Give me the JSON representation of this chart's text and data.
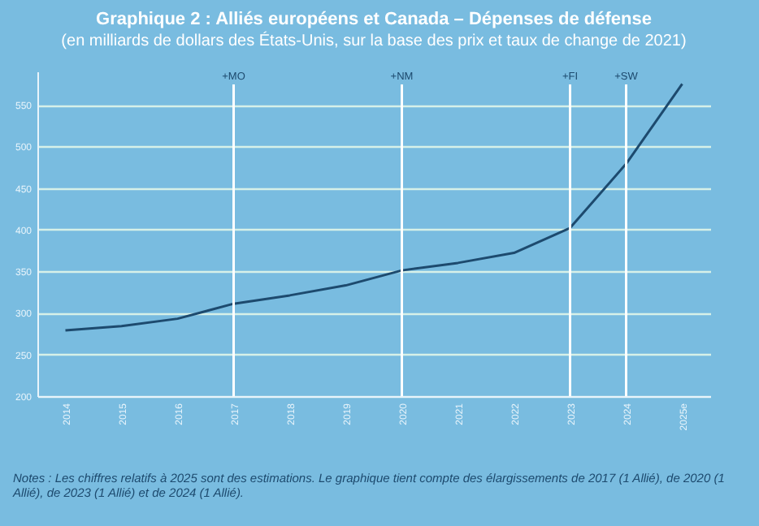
{
  "chart_data": {
    "type": "line",
    "title": "Graphique 2 : Alliés européens et Canada – Dépenses de défense",
    "subtitle": "(en milliards de dollars des États-Unis, sur la base des prix et taux de change de 2021)",
    "categories": [
      "2014",
      "2015",
      "2016",
      "2017",
      "2018",
      "2019",
      "2020",
      "2021",
      "2022",
      "2023",
      "2024",
      "2025e"
    ],
    "series": [
      {
        "color": "#1d4a6e",
        "values": [
          279,
          284,
          293,
          311,
          321,
          333,
          351,
          360,
          372,
          402,
          479,
          575
        ]
      }
    ],
    "ylim": [
      200,
      590
    ],
    "yticks": [
      200,
      250,
      300,
      350,
      400,
      450,
      500,
      550
    ],
    "grid": "y",
    "marker": "none",
    "line_style": "solid",
    "ref_lines": [
      {
        "axis": "x",
        "value": "2017",
        "label": "+MO",
        "color": "#ffffff"
      },
      {
        "axis": "x",
        "value": "2020",
        "label": "+NM",
        "color": "#ffffff"
      },
      {
        "axis": "x",
        "value": "2023",
        "label": "+FI",
        "color": "#ffffff"
      },
      {
        "axis": "x",
        "value": "2024",
        "label": "+SW",
        "color": "#ffffff"
      }
    ],
    "annotations": [
      "Notes : Les chiffres relatifs à 2025 sont des estimations. Le graphique tient compte des élargissements de 2017 (1 Allié), de 2020 (1 Allié), de 2023 (1 Allié) et de 2024 (1 Allié)."
    ]
  }
}
